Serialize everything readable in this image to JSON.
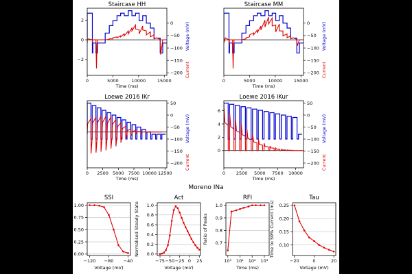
{
  "colors": {
    "background": "#000000",
    "panel": "#ffffff",
    "voltage": "#0000cc",
    "current": "#dd0000",
    "ink": "#000000",
    "grid": "#b0b0b0"
  },
  "chart_data": [
    {
      "id": "staircase-hh",
      "type": "line",
      "title": "Staircase HH",
      "xlabel": "Time (ms)",
      "ylabel_left": "Current",
      "ylabel_right": "Voltage (mV)",
      "xlim": [
        0,
        15500
      ],
      "xticks": [
        0,
        5000,
        10000,
        15000
      ],
      "ylim_left": [
        -3.6,
        3.2
      ],
      "yticks_left": [
        -2,
        0,
        2
      ],
      "ylim_right": [
        -210,
        60
      ],
      "yticks_right": [
        0,
        -50,
        -100,
        -150,
        -200
      ],
      "series": [
        {
          "name": "Voltage",
          "axis": "right",
          "color": "#0000cc",
          "x": [
            0,
            0,
            1000,
            1000,
            1100,
            1100,
            1700,
            1700,
            2000,
            2000,
            3500,
            3500,
            4300,
            4300,
            5000,
            5000,
            5800,
            5800,
            6500,
            6500,
            7200,
            7200,
            8000,
            8000,
            8700,
            8700,
            9400,
            9400,
            10100,
            10100,
            10800,
            10800,
            11500,
            11500,
            12300,
            12300,
            13000,
            13000,
            14200,
            14200,
            14700,
            14700,
            15500
          ],
          "y": [
            -80,
            40,
            40,
            -120,
            -120,
            -80,
            -80,
            -120,
            -120,
            -80,
            -80,
            -40,
            -40,
            -10,
            -10,
            10,
            10,
            30,
            30,
            40,
            40,
            30,
            30,
            50,
            50,
            30,
            30,
            40,
            40,
            10,
            10,
            30,
            30,
            0,
            0,
            -20,
            -20,
            -60,
            -60,
            -120,
            -120,
            -80,
            -80
          ]
        },
        {
          "name": "Current",
          "axis": "left",
          "color": "#dd0000",
          "x": [
            0,
            300,
            600,
            1000,
            1000,
            1100,
            1200,
            1700,
            1800,
            1900,
            2000,
            2100,
            3500,
            4300,
            4300,
            5000,
            5000,
            5800,
            5800,
            6500,
            6500,
            7200,
            7200,
            8000,
            8000,
            8700,
            8700,
            9400,
            9400,
            10100,
            10100,
            10800,
            10800,
            11500,
            11500,
            12300,
            12300,
            13000,
            13000,
            13500,
            14000,
            14200,
            14300,
            14700,
            14800,
            15500
          ],
          "y": [
            0,
            0.1,
            0.05,
            0,
            -0.3,
            0,
            0,
            0,
            -2.9,
            -0.4,
            0,
            0,
            0,
            0.05,
            0.1,
            0.1,
            0.2,
            0.3,
            0.2,
            0.4,
            0.3,
            0.6,
            0.4,
            0.9,
            0.6,
            1.2,
            0.9,
            1.5,
            1.1,
            1.0,
            0.6,
            1.4,
            1.0,
            0.9,
            0.5,
            0.8,
            0.3,
            0.5,
            0.1,
            0.2,
            0.1,
            0,
            -1.5,
            0,
            0,
            0
          ]
        }
      ]
    },
    {
      "id": "staircase-mm",
      "type": "line",
      "title": "Staircase MM",
      "xlabel": "Time (ms)",
      "ylabel_left": "Current",
      "ylabel_right": "Voltage (mV)",
      "xlim": [
        0,
        15500
      ],
      "xticks": [
        0,
        5000,
        10000,
        15000
      ],
      "ylim_left": [
        -3.6,
        3.2
      ],
      "yticks_left": [],
      "ylim_right": [
        -210,
        60
      ],
      "yticks_right": [
        0,
        -50,
        -100,
        -150,
        -200
      ],
      "series": [
        {
          "name": "Voltage",
          "axis": "right",
          "color": "#0000cc",
          "x": [
            0,
            0,
            1000,
            1000,
            1100,
            1100,
            1700,
            1700,
            2000,
            2000,
            3500,
            3500,
            4300,
            4300,
            5000,
            5000,
            5800,
            5800,
            6500,
            6500,
            7200,
            7200,
            8000,
            8000,
            8700,
            8700,
            9400,
            9400,
            10100,
            10100,
            10800,
            10800,
            11500,
            11500,
            12300,
            12300,
            13000,
            13000,
            14200,
            14200,
            14700,
            14700,
            15500
          ],
          "y": [
            -80,
            40,
            40,
            -120,
            -120,
            -80,
            -80,
            -120,
            -120,
            -80,
            -80,
            -40,
            -40,
            -10,
            -10,
            10,
            10,
            30,
            30,
            40,
            40,
            30,
            30,
            50,
            50,
            30,
            30,
            40,
            40,
            10,
            10,
            30,
            30,
            0,
            0,
            -20,
            -20,
            -60,
            -60,
            -120,
            -120,
            -80,
            -80
          ]
        },
        {
          "name": "Current",
          "axis": "left",
          "color": "#dd0000",
          "x": [
            0,
            300,
            600,
            1000,
            1000,
            1100,
            1200,
            1700,
            1800,
            1900,
            2000,
            2100,
            3500,
            4300,
            4300,
            5000,
            5000,
            5800,
            5800,
            6500,
            6500,
            7200,
            7200,
            8000,
            8000,
            8700,
            8700,
            9400,
            9400,
            10100,
            10100,
            10800,
            10800,
            11500,
            11500,
            12300,
            12300,
            13000,
            13000,
            13500,
            14000,
            14200,
            14300,
            14700,
            14800,
            15500
          ],
          "y": [
            -0.3,
            0.2,
            0.1,
            0,
            -0.5,
            0,
            0,
            0,
            -2.9,
            -0.5,
            0,
            0,
            0,
            0.1,
            0.2,
            0.3,
            0.5,
            0.7,
            0.5,
            1.0,
            0.7,
            1.4,
            1.0,
            2.0,
            1.3,
            2.3,
            1.6,
            2.2,
            1.4,
            1.5,
            0.8,
            1.6,
            0.9,
            0.9,
            0.4,
            0.6,
            0.2,
            0.4,
            0.1,
            0.2,
            0.1,
            0,
            -0.6,
            0,
            0,
            0
          ]
        }
      ]
    },
    {
      "id": "loewe-ikr",
      "type": "line",
      "title": "Loewe 2016 IKr",
      "xlabel": "Time (ms)",
      "ylabel_left": "Current",
      "ylabel_right": "Voltage (mV)",
      "xlim": [
        0,
        12800
      ],
      "xticks": [
        0,
        2500,
        5000,
        7500,
        10000,
        12500
      ],
      "ylim_left": [
        -8,
        7
      ],
      "yticks_left": [],
      "ylim_right": [
        -220,
        60
      ],
      "yticks_right": [
        50,
        0,
        -50,
        -100,
        -150,
        -200
      ],
      "series": [
        {
          "name": "Voltage",
          "axis": "right",
          "color": "#0000cc",
          "pulse_start_x": [
            0,
            800,
            1600,
            2400,
            3200,
            4000,
            4800,
            5600,
            6400,
            7200,
            8000,
            8800,
            9600,
            10400,
            11200
          ],
          "pulse_end_x": [
            600,
            1400,
            2200,
            3000,
            3800,
            4600,
            5400,
            6200,
            7000,
            7800,
            8600,
            9400,
            10200,
            11000,
            11800
          ],
          "pulse_level": [
            50,
            40,
            30,
            20,
            10,
            0,
            -10,
            -20,
            -30,
            -40,
            -50,
            -60,
            -70,
            -80,
            -80
          ],
          "baseline": -80,
          "tail": -100,
          "end_x": 12600
        },
        {
          "name": "Current",
          "axis": "left",
          "color": "#dd0000",
          "pulse_start_x": [
            0,
            800,
            1600,
            2400,
            3200,
            4000,
            4800,
            5600,
            6400,
            7200,
            8000,
            8800,
            9600,
            10400,
            11200
          ],
          "pulse_peak": [
            3.0,
            3.3,
            3.5,
            3.5,
            3.3,
            2.8,
            2.0,
            1.3,
            0.6,
            0.3,
            0.1,
            0.05,
            0,
            0,
            0
          ],
          "tail_min": [
            -4.8,
            -4.6,
            -4.4,
            -4.1,
            -3.7,
            -3.2,
            -2.4,
            -1.6,
            -0.9,
            -0.4,
            -0.2,
            -0.1,
            0,
            0,
            0
          ]
        }
      ]
    },
    {
      "id": "loewe-ikur",
      "type": "line",
      "title": "Loewe 2016 IKur",
      "xlabel": "Time (ms)",
      "ylabel_left": "Current",
      "ylabel_right": "Voltage (mV)",
      "xlim": [
        0,
        11100
      ],
      "xticks": [
        0,
        2500,
        5000,
        7500,
        10000
      ],
      "ylim_left": [
        -2.6,
        7.5
      ],
      "yticks_left": [
        0,
        2,
        4,
        6
      ],
      "ylim_right": [
        -220,
        60
      ],
      "yticks_right": [
        50,
        0,
        -50,
        -100,
        -150,
        -200
      ],
      "series": [
        {
          "name": "Voltage",
          "axis": "right",
          "color": "#0000cc",
          "pulse_start_x": [
            0,
            800,
            1600,
            2400,
            3200,
            4000,
            4800,
            5600,
            6400,
            7200,
            8000,
            8800,
            9600
          ],
          "pulse_end_x": [
            600,
            1400,
            2200,
            3000,
            3800,
            4600,
            5400,
            6200,
            7000,
            7800,
            8600,
            9400,
            10200
          ],
          "pulse_level": [
            50,
            45,
            40,
            35,
            30,
            25,
            20,
            15,
            10,
            5,
            0,
            -5,
            -10
          ],
          "baseline": -80,
          "tail": -100,
          "end_x": 10900
        },
        {
          "name": "Current",
          "axis": "left",
          "color": "#dd0000",
          "pulse_start_x": [
            0,
            800,
            1600,
            2400,
            3200,
            4000,
            4800,
            5600,
            6400,
            7200,
            8000,
            8800,
            9600
          ],
          "pulse_peak": [
            6.4,
            5.6,
            4.8,
            4.0,
            3.2,
            2.4,
            1.7,
            1.1,
            0.7,
            0.4,
            0.2,
            0.1,
            0.05
          ],
          "pulse_plateau": [
            4.2,
            3.6,
            3.0,
            2.4,
            1.8,
            1.3,
            0.9,
            0.6,
            0.4,
            0.2,
            0.1,
            0.05,
            0
          ]
        }
      ]
    }
  ],
  "moreno": {
    "suptitle": "Moreno INa",
    "panels": [
      {
        "id": "ssi",
        "type": "line",
        "title": "SSI",
        "xlabel": "Voltage (mV)",
        "ylabel": "",
        "xscale": "linear",
        "xlim": [
          -125,
          -35
        ],
        "xticks": [
          -120,
          -80,
          -40
        ],
        "xtick_labels": [
          "−120",
          "−80",
          "−40"
        ],
        "ylim": [
          -0.03,
          1.05
        ],
        "yticks": [
          0.0,
          0.25,
          0.5,
          0.75,
          1.0
        ],
        "ytick_labels": [
          "0.00",
          "0.25",
          "0.50",
          "0.75",
          "1.00"
        ],
        "x": [
          -120,
          -110,
          -100,
          -90,
          -80,
          -70,
          -60,
          -50,
          -40
        ],
        "y": [
          1.0,
          1.0,
          0.99,
          0.96,
          0.8,
          0.5,
          0.18,
          0.05,
          0.02
        ]
      },
      {
        "id": "act",
        "type": "line",
        "title": "Act",
        "xlabel": "Voltage (mV)",
        "ylabel": "Normalised Steady State",
        "xscale": "linear",
        "xlim": [
          -82,
          28
        ],
        "xticks": [
          -75,
          -50,
          -25,
          0,
          25
        ],
        "xtick_labels": [
          "−75",
          "−50",
          "−25",
          "0",
          "25"
        ],
        "ylim": [
          -0.03,
          1.05
        ],
        "yticks": [
          0.0,
          0.2,
          0.4,
          0.6,
          0.8,
          1.0
        ],
        "ytick_labels": [
          "0.0",
          "0.2",
          "0.4",
          "0.6",
          "0.8",
          "1.0"
        ],
        "x": [
          -75,
          -70,
          -65,
          -60,
          -55,
          -50,
          -45,
          -40,
          -35,
          -30,
          -25,
          -20,
          -15,
          -10,
          -5,
          0,
          5,
          10,
          15,
          20,
          25
        ],
        "y": [
          0.0,
          0.01,
          0.03,
          0.08,
          0.18,
          0.38,
          0.68,
          0.9,
          0.98,
          0.94,
          0.85,
          0.74,
          0.64,
          0.55,
          0.47,
          0.39,
          0.31,
          0.24,
          0.18,
          0.13,
          0.09
        ]
      },
      {
        "id": "rfi",
        "type": "line",
        "title": "RFI",
        "xlabel": "Time (ms)",
        "ylabel": "Ratio of Peaks",
        "xscale": "log",
        "xlim": [
          0.7,
          2500
        ],
        "xticks": [
          1,
          10,
          100,
          1000
        ],
        "xtick_labels": [
          "10⁰",
          "10¹",
          "10²",
          "10³"
        ],
        "ylim": [
          0.6,
          1.02
        ],
        "yticks": [
          0.7,
          0.8,
          0.9,
          1.0
        ],
        "ytick_labels": [
          "0.7",
          "0.8",
          "0.9",
          "1.0"
        ],
        "x": [
          1,
          2,
          5,
          10,
          20,
          50,
          100,
          200,
          500,
          1000
        ],
        "y": [
          0.64,
          0.95,
          0.96,
          0.97,
          0.98,
          0.99,
          1.0,
          1.0,
          1.0,
          1.0
        ]
      },
      {
        "id": "tau",
        "type": "line",
        "title": "Tau",
        "xlabel": "Voltage (mV)",
        "ylabel": "Time to 50% Current (ms)",
        "xscale": "linear",
        "xlim": [
          -22,
          22
        ],
        "xticks": [
          -20,
          0,
          20
        ],
        "xtick_labels": [
          "−20",
          "0",
          "20"
        ],
        "ylim": [
          0.06,
          0.26
        ],
        "yticks": [
          0.1,
          0.15,
          0.2,
          0.25
        ],
        "ytick_labels": [
          "0.10",
          "0.15",
          "0.20",
          "0.25"
        ],
        "x": [
          -20,
          -15,
          -10,
          -5,
          0,
          5,
          10,
          15,
          20
        ],
        "y": [
          0.25,
          0.19,
          0.155,
          0.128,
          0.115,
          0.1,
          0.09,
          0.082,
          0.075
        ]
      }
    ]
  }
}
